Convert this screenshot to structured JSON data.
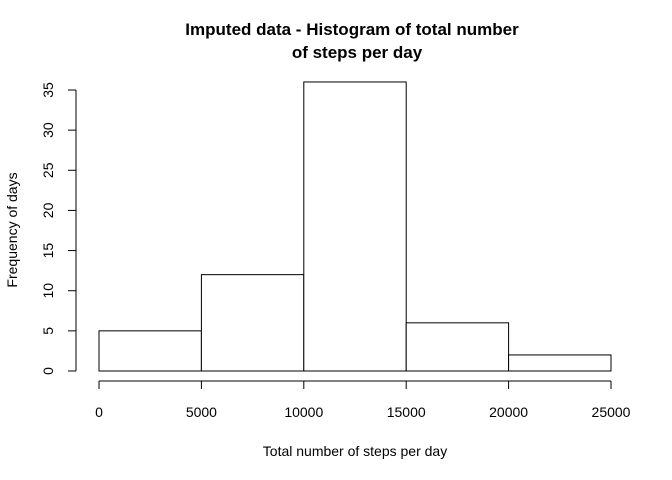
{
  "chart_data": {
    "type": "bar",
    "title_line1": "Imputed data - Histogram of total number",
    "title_line2": "of steps per day",
    "xlabel": "Total number of steps per day",
    "ylabel": "Frequency of days",
    "bins": [
      {
        "start": 0,
        "end": 5000,
        "count": 5
      },
      {
        "start": 5000,
        "end": 10000,
        "count": 12
      },
      {
        "start": 10000,
        "end": 15000,
        "count": 36
      },
      {
        "start": 15000,
        "end": 20000,
        "count": 6
      },
      {
        "start": 20000,
        "end": 25000,
        "count": 2
      }
    ],
    "xlim": [
      0,
      25000
    ],
    "ylim": [
      0,
      35
    ],
    "x_ticks": [
      0,
      5000,
      10000,
      15000,
      20000,
      25000
    ],
    "y_ticks": [
      0,
      5,
      10,
      15,
      20,
      25,
      30,
      35
    ],
    "grid": false,
    "bar_fill": "#ffffff",
    "bar_stroke": "#000000"
  }
}
